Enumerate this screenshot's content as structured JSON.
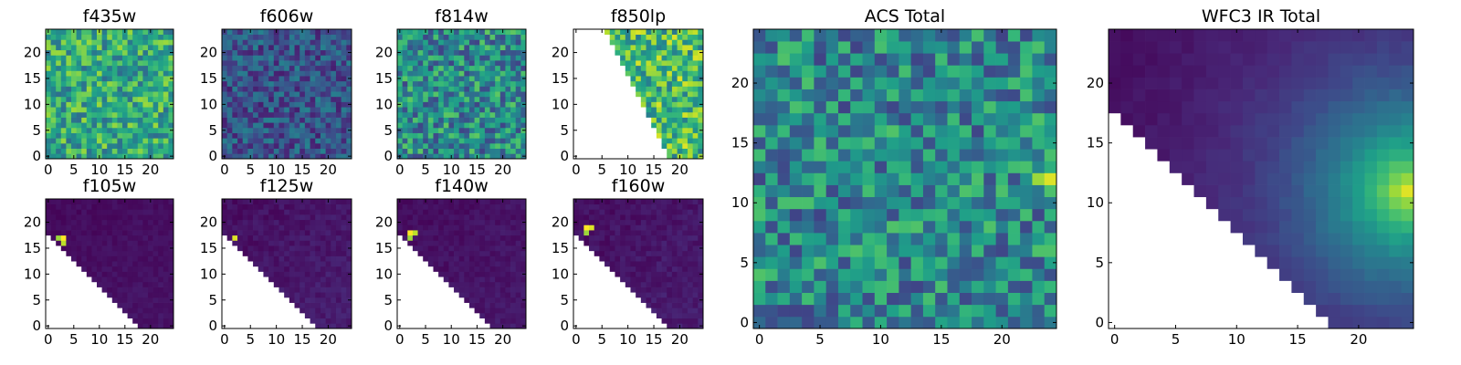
{
  "figure": {
    "colormap": "viridis",
    "colormap_stops": [
      "#440154",
      "#482878",
      "#3e4989",
      "#31688e",
      "#26828e",
      "#1f9e89",
      "#35b779",
      "#6ece58",
      "#b5de2b",
      "#fde725"
    ],
    "background": "#ffffff",
    "grid": false,
    "colorbar": false
  },
  "chart_data": [
    {
      "type": "heatmap",
      "title": "f435w",
      "grid_size": [
        25,
        25
      ],
      "xlim": [
        0,
        24
      ],
      "ylim": [
        0,
        24
      ],
      "x_ticks": [
        0,
        5,
        10,
        15,
        20
      ],
      "y_ticks": [
        0,
        5,
        10,
        15,
        20
      ],
      "masked_region": "none",
      "value_pattern": "noise",
      "value_range": [
        0.35,
        0.85
      ],
      "seed": 11
    },
    {
      "type": "heatmap",
      "title": "f606w",
      "grid_size": [
        25,
        25
      ],
      "xlim": [
        0,
        24
      ],
      "ylim": [
        0,
        24
      ],
      "x_ticks": [
        0,
        5,
        10,
        15,
        20
      ],
      "y_ticks": [
        0,
        5,
        10,
        15,
        20
      ],
      "masked_region": "none",
      "value_pattern": "noise",
      "value_range": [
        0.08,
        0.45
      ],
      "seed": 23
    },
    {
      "type": "heatmap",
      "title": "f814w",
      "grid_size": [
        25,
        25
      ],
      "xlim": [
        0,
        24
      ],
      "ylim": [
        0,
        24
      ],
      "x_ticks": [
        0,
        5,
        10,
        15,
        20
      ],
      "y_ticks": [
        0,
        5,
        10,
        15,
        20
      ],
      "masked_region": "none",
      "value_pattern": "noise",
      "value_range": [
        0.2,
        0.75
      ],
      "seed": 37
    },
    {
      "type": "heatmap",
      "title": "f850lp",
      "grid_size": [
        25,
        25
      ],
      "xlim": [
        0,
        24
      ],
      "ylim": [
        0,
        24
      ],
      "x_ticks": [
        0,
        5,
        10,
        15,
        20
      ],
      "y_ticks": [
        0,
        5,
        10,
        15,
        20
      ],
      "masked_region": "lower-left wedge",
      "mask_boundary": [
        [
          6,
          24
        ],
        [
          18,
          0
        ]
      ],
      "value_pattern": "noise",
      "value_range": [
        0.4,
        0.95
      ],
      "seed": 41
    },
    {
      "type": "heatmap",
      "title": "f105w",
      "grid_size": [
        25,
        25
      ],
      "xlim": [
        0,
        24
      ],
      "ylim": [
        0,
        24
      ],
      "x_ticks": [
        0,
        5,
        10,
        15,
        20
      ],
      "y_ticks": [
        0,
        5,
        10,
        15,
        20
      ],
      "masked_region": "lower-left wedge",
      "mask_boundary": [
        [
          0,
          18
        ],
        [
          18,
          0
        ]
      ],
      "value_pattern": "faint",
      "value_range": [
        0.0,
        0.08
      ],
      "hot_pixels": [
        [
          3,
          17,
          1.0
        ],
        [
          2,
          17,
          0.85
        ],
        [
          3,
          16,
          0.9
        ]
      ],
      "seed": 53
    },
    {
      "type": "heatmap",
      "title": "f125w",
      "grid_size": [
        25,
        25
      ],
      "xlim": [
        0,
        24
      ],
      "ylim": [
        0,
        24
      ],
      "x_ticks": [
        0,
        5,
        10,
        15,
        20
      ],
      "y_ticks": [
        0,
        5,
        10,
        15,
        20
      ],
      "masked_region": "lower-left wedge",
      "mask_boundary": [
        [
          0,
          18
        ],
        [
          18,
          0
        ]
      ],
      "value_pattern": "faint",
      "value_range": [
        0.0,
        0.12
      ],
      "hot_pixels": [
        [
          2,
          17,
          0.95
        ]
      ],
      "seed": 61
    },
    {
      "type": "heatmap",
      "title": "f140w",
      "grid_size": [
        25,
        25
      ],
      "xlim": [
        0,
        24
      ],
      "ylim": [
        0,
        24
      ],
      "x_ticks": [
        0,
        5,
        10,
        15,
        20
      ],
      "y_ticks": [
        0,
        5,
        10,
        15,
        20
      ],
      "masked_region": "lower-left wedge",
      "mask_boundary": [
        [
          0,
          18
        ],
        [
          18,
          0
        ]
      ],
      "value_pattern": "faint",
      "value_range": [
        0.0,
        0.1
      ],
      "hot_pixels": [
        [
          2,
          18,
          1.0
        ],
        [
          3,
          18,
          0.9
        ],
        [
          2,
          17,
          0.85
        ]
      ],
      "seed": 71
    },
    {
      "type": "heatmap",
      "title": "f160w",
      "grid_size": [
        25,
        25
      ],
      "xlim": [
        0,
        24
      ],
      "ylim": [
        0,
        24
      ],
      "x_ticks": [
        0,
        5,
        10,
        15,
        20
      ],
      "y_ticks": [
        0,
        5,
        10,
        15,
        20
      ],
      "masked_region": "lower-left wedge",
      "mask_boundary": [
        [
          0,
          18
        ],
        [
          18,
          0
        ]
      ],
      "value_pattern": "faint",
      "value_range": [
        0.0,
        0.12
      ],
      "hot_pixels": [
        [
          2,
          19,
          1.0
        ],
        [
          3,
          19,
          0.95
        ],
        [
          2,
          18,
          0.85
        ]
      ],
      "seed": 83
    },
    {
      "type": "heatmap",
      "title": "ACS Total",
      "grid_size": [
        25,
        25
      ],
      "xlim": [
        0,
        24
      ],
      "ylim": [
        0,
        24
      ],
      "x_ticks": [
        0,
        5,
        10,
        15,
        20
      ],
      "y_ticks": [
        0,
        5,
        10,
        15,
        20
      ],
      "masked_region": "none",
      "value_pattern": "noise",
      "value_range": [
        0.2,
        0.72
      ],
      "hot_pixels": [
        [
          24,
          12,
          0.95
        ],
        [
          23,
          12,
          0.85
        ]
      ],
      "seed": 97
    },
    {
      "type": "heatmap",
      "title": "WFC3 IR Total",
      "grid_size": [
        25,
        25
      ],
      "xlim": [
        0,
        24
      ],
      "ylim": [
        0,
        24
      ],
      "x_ticks": [
        0,
        5,
        10,
        15,
        20
      ],
      "y_ticks": [
        0,
        5,
        10,
        15,
        20
      ],
      "masked_region": "lower-left wedge",
      "mask_boundary": [
        [
          0,
          18
        ],
        [
          18,
          0
        ]
      ],
      "value_pattern": "gradient",
      "value_range": [
        0.0,
        0.95
      ],
      "peak": [
        24,
        11
      ],
      "seed": 101
    }
  ]
}
